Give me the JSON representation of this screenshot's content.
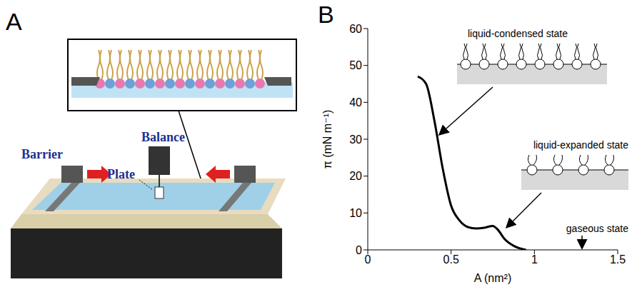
{
  "diagram": {
    "letter": "A",
    "labels": {
      "barrier": "Barrier",
      "balance": "Balance",
      "plate": "Plate"
    }
  },
  "chart_data": {
    "letter": "B",
    "type": "line",
    "x_label": "A (nm²)",
    "y_label": "π (mN m⁻¹)",
    "x": [
      0.3,
      0.35,
      0.4,
      0.45,
      0.5,
      0.55,
      0.6,
      0.65,
      0.7,
      0.75,
      0.78,
      0.82,
      0.88,
      0.93,
      0.95
    ],
    "values": [
      47,
      45,
      35,
      22,
      12,
      8,
      6.2,
      5.8,
      6,
      6.5,
      5.5,
      3,
      1,
      0.2,
      0
    ],
    "color": "#000000",
    "xlim": [
      0,
      1.5
    ],
    "xticks": [
      0,
      0.5,
      1,
      1.5
    ],
    "ylim": [
      0,
      60
    ],
    "yticks": [
      0,
      10,
      20,
      30,
      40,
      50,
      60
    ],
    "grid": false,
    "annotations": [
      "liquid-condensed state",
      "liquid-expanded state",
      "gaseous state"
    ]
  }
}
